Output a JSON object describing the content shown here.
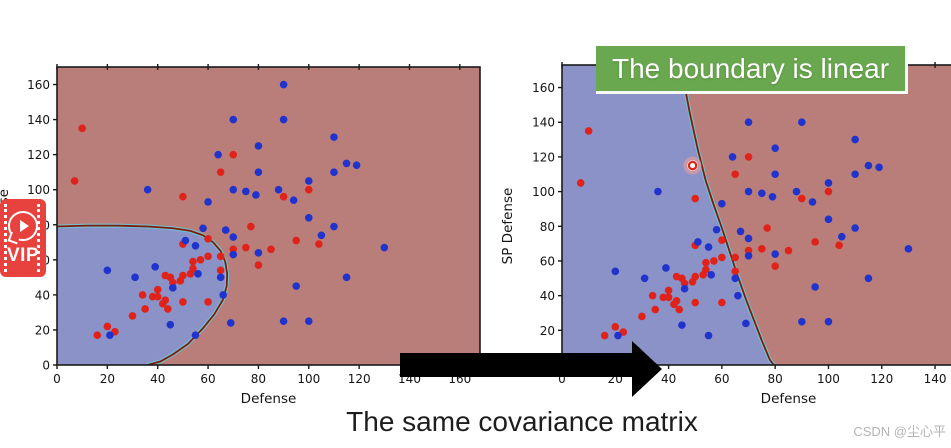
{
  "banner": {
    "text": "The boundary is linear",
    "bg": "#6aa84f",
    "fg": "#ffffff"
  },
  "caption": {
    "text": "The same covariance matrix"
  },
  "watermark": {
    "text": "CSDN @尘心平"
  },
  "vip": {
    "label": "VIP",
    "icon": "play-bubble-icon",
    "bg": "#e8423e"
  },
  "arrow": {
    "direction": "right",
    "color": "#000000"
  },
  "colors": {
    "red_region": "#b97e7a",
    "blue_region": "#8b92c8",
    "red_point": "#e0231a",
    "blue_point": "#2133cd",
    "boundary": "#7e1a10",
    "fringe_cyan": "#62cdd8",
    "fringe_yellow": "#e3c42e",
    "frame": "#1a1a1a",
    "tick_label": "#141414"
  },
  "chart_data": [
    {
      "type": "scatter",
      "name": "curved-boundary-plot",
      "xlabel": "Defense",
      "ylabel_visible": "nse",
      "xlim": [
        0,
        168
      ],
      "ylim": [
        0,
        170
      ],
      "xticks": [
        0,
        20,
        40,
        60,
        80,
        100,
        120,
        140,
        160
      ],
      "yticks": [
        0,
        20,
        40,
        60,
        80,
        100,
        120,
        140,
        160
      ],
      "grid": false,
      "legend": "none",
      "boundary_shape": "curved",
      "boundary_points": [
        [
          0,
          79
        ],
        [
          12,
          79.5
        ],
        [
          24,
          79.5
        ],
        [
          36,
          79
        ],
        [
          46,
          78
        ],
        [
          53,
          76.5
        ],
        [
          58,
          74
        ],
        [
          62,
          70
        ],
        [
          65,
          65
        ],
        [
          66.8,
          59
        ],
        [
          67.6,
          52
        ],
        [
          67.4,
          45
        ],
        [
          65.8,
          37
        ],
        [
          62.5,
          29
        ],
        [
          58,
          21
        ],
        [
          52,
          12
        ],
        [
          46,
          6
        ],
        [
          41,
          2
        ],
        [
          36,
          0
        ]
      ],
      "series": [
        {
          "name": "red-class",
          "color": "#e0231a",
          "points": [
            [
              10,
              135
            ],
            [
              7,
              105
            ],
            [
              70,
              120
            ],
            [
              65,
              110
            ],
            [
              50,
              96
            ],
            [
              90,
              96
            ],
            [
              100,
              100
            ],
            [
              50,
              69
            ],
            [
              60,
              72
            ],
            [
              57,
              60
            ],
            [
              60,
              62
            ],
            [
              65,
              62
            ],
            [
              65,
              54
            ],
            [
              50,
              51
            ],
            [
              45,
              50
            ],
            [
              43,
              51
            ],
            [
              40,
              43
            ],
            [
              38,
              39
            ],
            [
              42,
              35
            ],
            [
              50,
              36
            ],
            [
              60,
              36
            ],
            [
              70,
              66
            ],
            [
              75,
              67
            ],
            [
              77,
              79
            ],
            [
              95,
              71
            ],
            [
              104,
              69
            ],
            [
              85,
              66
            ],
            [
              80,
              57
            ],
            [
              16,
              17
            ],
            [
              20,
              22
            ],
            [
              23,
              19
            ],
            [
              30,
              28
            ],
            [
              34,
              40
            ],
            [
              35,
              32
            ],
            [
              40,
              39
            ],
            [
              43,
              37
            ],
            [
              44,
              32
            ],
            [
              46,
              47
            ],
            [
              49,
              48
            ],
            [
              53,
              52
            ],
            [
              54,
              55
            ],
            [
              54,
              59
            ]
          ]
        },
        {
          "name": "blue-class",
          "color": "#2133cd",
          "points": [
            [
              90,
              160
            ],
            [
              70,
              140
            ],
            [
              90,
              140
            ],
            [
              110,
              130
            ],
            [
              80,
              125
            ],
            [
              64,
              120
            ],
            [
              115,
              115
            ],
            [
              119,
              114
            ],
            [
              110,
              110
            ],
            [
              80,
              110
            ],
            [
              100,
              105
            ],
            [
              36,
              100
            ],
            [
              70,
              100
            ],
            [
              75,
              99
            ],
            [
              79,
              97
            ],
            [
              88,
              100
            ],
            [
              94,
              94
            ],
            [
              60,
              93
            ],
            [
              100,
              84
            ],
            [
              110,
              79
            ],
            [
              130,
              67
            ],
            [
              115,
              50
            ],
            [
              105,
              74
            ],
            [
              20,
              54
            ],
            [
              31,
              50
            ],
            [
              39,
              56
            ],
            [
              46,
              44
            ],
            [
              51,
              71
            ],
            [
              55,
              68
            ],
            [
              56,
              52
            ],
            [
              65,
              50
            ],
            [
              66,
              40
            ],
            [
              70,
              63
            ],
            [
              70,
              73
            ],
            [
              58,
              78
            ],
            [
              67,
              77
            ],
            [
              95,
              45
            ],
            [
              80,
              64
            ],
            [
              21,
              17
            ],
            [
              45,
              23
            ],
            [
              55,
              17
            ],
            [
              69,
              24
            ],
            [
              90,
              25
            ],
            [
              100,
              25
            ]
          ]
        }
      ]
    },
    {
      "type": "scatter",
      "name": "linear-boundary-plot",
      "xlabel": "Defense",
      "ylabel": "SP Defense",
      "xlim": [
        0,
        170
      ],
      "ylim": [
        0,
        173
      ],
      "xticks": [
        0,
        20,
        40,
        60,
        80,
        100,
        120,
        140
      ],
      "yticks": [
        0,
        20,
        40,
        60,
        80,
        100,
        120,
        140,
        160
      ],
      "grid": false,
      "legend": "none",
      "boundary_shape": "linear",
      "boundary_points": [
        [
          44.5,
          173
        ],
        [
          48,
          145
        ],
        [
          51,
          124
        ],
        [
          54,
          106
        ],
        [
          57,
          92
        ],
        [
          60,
          79
        ],
        [
          63,
          65
        ],
        [
          66,
          51
        ],
        [
          69,
          38
        ],
        [
          72,
          26
        ],
        [
          75,
          14
        ],
        [
          78,
          3
        ],
        [
          79.5,
          0
        ]
      ],
      "highlight_point": {
        "xy": [
          49,
          115
        ],
        "style": "open-red-circle-glow"
      },
      "series": [
        {
          "name": "red-class",
          "color": "#e0231a",
          "points": [
            [
              10,
              135
            ],
            [
              7,
              105
            ],
            [
              70,
              120
            ],
            [
              65,
              110
            ],
            [
              50,
              96
            ],
            [
              90,
              96
            ],
            [
              100,
              100
            ],
            [
              50,
              69
            ],
            [
              60,
              72
            ],
            [
              57,
              60
            ],
            [
              60,
              62
            ],
            [
              65,
              62
            ],
            [
              65,
              54
            ],
            [
              50,
              51
            ],
            [
              45,
              50
            ],
            [
              43,
              51
            ],
            [
              40,
              43
            ],
            [
              38,
              39
            ],
            [
              42,
              35
            ],
            [
              50,
              36
            ],
            [
              60,
              36
            ],
            [
              70,
              66
            ],
            [
              75,
              67
            ],
            [
              77,
              79
            ],
            [
              95,
              71
            ],
            [
              104,
              69
            ],
            [
              85,
              66
            ],
            [
              80,
              57
            ],
            [
              16,
              17
            ],
            [
              20,
              22
            ],
            [
              23,
              19
            ],
            [
              30,
              28
            ],
            [
              34,
              40
            ],
            [
              35,
              32
            ],
            [
              40,
              39
            ],
            [
              43,
              37
            ],
            [
              44,
              32
            ],
            [
              46,
              47
            ],
            [
              49,
              48
            ],
            [
              53,
              52
            ],
            [
              54,
              55
            ],
            [
              54,
              59
            ]
          ]
        },
        {
          "name": "blue-class",
          "color": "#2133cd",
          "points": [
            [
              90,
              160
            ],
            [
              70,
              140
            ],
            [
              90,
              140
            ],
            [
              110,
              130
            ],
            [
              80,
              125
            ],
            [
              64,
              120
            ],
            [
              115,
              115
            ],
            [
              119,
              114
            ],
            [
              110,
              110
            ],
            [
              80,
              110
            ],
            [
              100,
              105
            ],
            [
              36,
              100
            ],
            [
              70,
              100
            ],
            [
              75,
              99
            ],
            [
              79,
              97
            ],
            [
              88,
              100
            ],
            [
              94,
              94
            ],
            [
              60,
              93
            ],
            [
              100,
              84
            ],
            [
              110,
              79
            ],
            [
              130,
              67
            ],
            [
              115,
              50
            ],
            [
              105,
              74
            ],
            [
              20,
              54
            ],
            [
              31,
              50
            ],
            [
              39,
              56
            ],
            [
              46,
              44
            ],
            [
              51,
              71
            ],
            [
              55,
              68
            ],
            [
              56,
              52
            ],
            [
              65,
              50
            ],
            [
              66,
              40
            ],
            [
              70,
              63
            ],
            [
              70,
              73
            ],
            [
              58,
              78
            ],
            [
              67,
              77
            ],
            [
              95,
              45
            ],
            [
              80,
              64
            ],
            [
              21,
              17
            ],
            [
              45,
              23
            ],
            [
              55,
              17
            ],
            [
              69,
              24
            ],
            [
              90,
              25
            ],
            [
              100,
              25
            ]
          ]
        }
      ]
    }
  ]
}
